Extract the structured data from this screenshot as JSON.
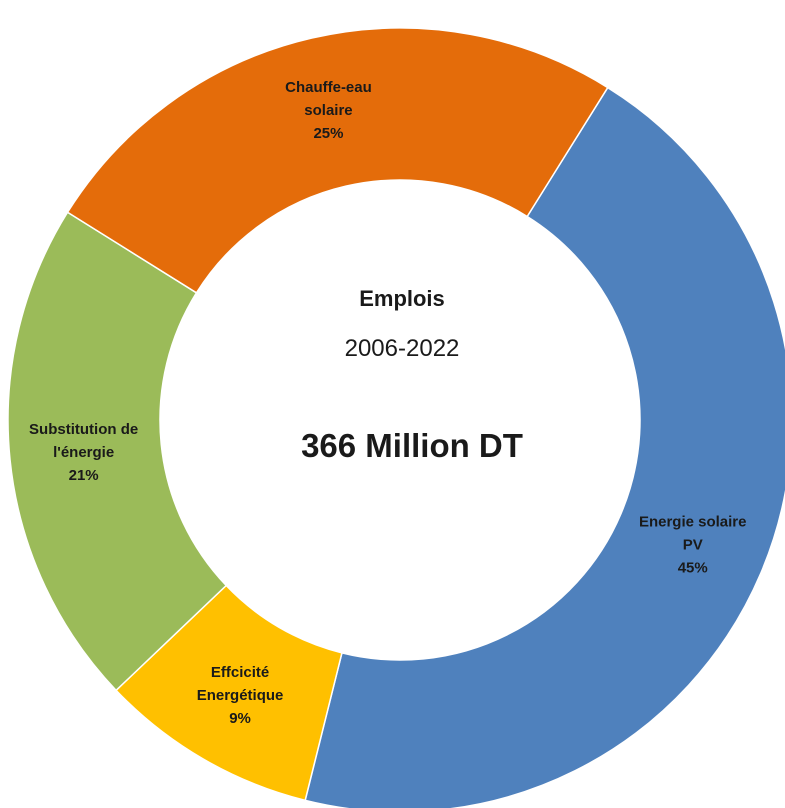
{
  "chart_data": {
    "type": "pie",
    "donut": true,
    "center_text": {
      "title": "Emplois",
      "years": "2006-2022",
      "total": "366 Million DT"
    },
    "slices": [
      {
        "lines": [
          "Energie solaire",
          "PV"
        ],
        "percent_label": "45%",
        "value": 45,
        "color": "#4F81BD"
      },
      {
        "lines": [
          "Effcicité",
          "Energétique"
        ],
        "percent_label": "9%",
        "value": 9,
        "color": "#FFC000"
      },
      {
        "lines": [
          "Substitution de",
          "l'énergie"
        ],
        "percent_label": "21%",
        "value": 21,
        "color": "#9BBB59"
      },
      {
        "lines": [
          "Chauffe-eau",
          "solaire"
        ],
        "percent_label": "25%",
        "value": 25,
        "color": "#E46C0A"
      }
    ]
  }
}
